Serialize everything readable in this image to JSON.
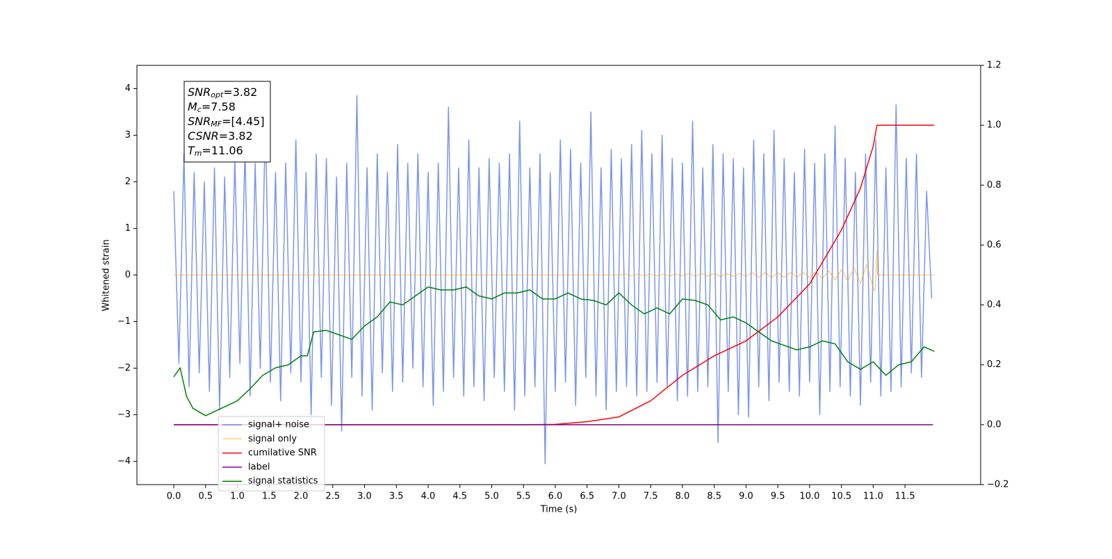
{
  "chart_data": {
    "type": "line",
    "xlabel": "Time (s)",
    "ylabel": "Whitened strain",
    "xlim": [
      -0.58,
      12.69
    ],
    "ylim": [
      -4.5,
      4.5
    ],
    "y2lim": [
      -0.2,
      1.2
    ],
    "xticks": [
      {
        "value": 0,
        "label": "0.0"
      },
      {
        "value": 0.5,
        "label": "0.5"
      },
      {
        "value": 1,
        "label": "1.0"
      },
      {
        "value": 1.5,
        "label": "1.5"
      },
      {
        "value": 2,
        "label": "2.0"
      },
      {
        "value": 2.5,
        "label": "2.5"
      },
      {
        "value": 3,
        "label": "3.0"
      },
      {
        "value": 3.5,
        "label": "3.5"
      },
      {
        "value": 4,
        "label": "4.0"
      },
      {
        "value": 4.5,
        "label": "4.5"
      },
      {
        "value": 5,
        "label": "5.0"
      },
      {
        "value": 5.5,
        "label": "5.5"
      },
      {
        "value": 6,
        "label": "6.0"
      },
      {
        "value": 6.5,
        "label": "6.5"
      },
      {
        "value": 7,
        "label": "7.0"
      },
      {
        "value": 7.5,
        "label": "7.5"
      },
      {
        "value": 8,
        "label": "8.0"
      },
      {
        "value": 8.5,
        "label": "8.5"
      },
      {
        "value": 9,
        "label": "9.0"
      },
      {
        "value": 9.5,
        "label": "9.5"
      },
      {
        "value": 10,
        "label": "10.0"
      },
      {
        "value": 10.5,
        "label": "10.5"
      },
      {
        "value": 11,
        "label": "11.0"
      },
      {
        "value": 11.5,
        "label": "11.5"
      }
    ],
    "yticks": [
      {
        "value": -4,
        "label": "−4"
      },
      {
        "value": -3,
        "label": "−3"
      },
      {
        "value": -2,
        "label": "−2"
      },
      {
        "value": -1,
        "label": "−1"
      },
      0,
      1,
      2,
      3,
      4
    ],
    "y2ticks": [
      {
        "value": -0.2,
        "label": "−0.2"
      },
      {
        "value": 0,
        "label": "0.0"
      },
      {
        "value": 0.2,
        "label": "0.2"
      },
      {
        "value": 0.4,
        "label": "0.4"
      },
      {
        "value": 0.6,
        "label": "0.6"
      },
      {
        "value": 0.8,
        "label": "0.8"
      },
      {
        "value": 1,
        "label": "1.0"
      },
      {
        "value": 1.2,
        "label": "1.2"
      }
    ],
    "annotation": [
      {
        "name": "SNR",
        "sub": "opt",
        "value": "=3.82"
      },
      {
        "name": "M",
        "sub": "c",
        "value": "=7.58"
      },
      {
        "name": "SNR",
        "sub": "MF",
        "value": "=[4.45]"
      },
      {
        "name": "CSNR",
        "value": "=3.82"
      },
      {
        "name": "T",
        "sub": "m",
        "value": "=11.06"
      }
    ],
    "series": [
      {
        "name": "signal+ noise",
        "color": "royalblue",
        "alpha": 0.7,
        "x": [
          0,
          0.08,
          0.16,
          0.24,
          0.32,
          0.4,
          0.48,
          0.56,
          0.64,
          0.72,
          0.8,
          0.88,
          0.96,
          1.04,
          1.12,
          1.2,
          1.28,
          1.36,
          1.44,
          1.52,
          1.6,
          1.68,
          1.76,
          1.84,
          1.92,
          2,
          2.08,
          2.16,
          2.24,
          2.32,
          2.4,
          2.48,
          2.56,
          2.64,
          2.72,
          2.8,
          2.88,
          2.96,
          3.04,
          3.12,
          3.2,
          3.28,
          3.36,
          3.44,
          3.52,
          3.6,
          3.68,
          3.76,
          3.84,
          3.92,
          4,
          4.08,
          4.16,
          4.24,
          4.32,
          4.4,
          4.48,
          4.56,
          4.64,
          4.72,
          4.8,
          4.88,
          4.96,
          5.04,
          5.12,
          5.2,
          5.28,
          5.36,
          5.44,
          5.52,
          5.6,
          5.68,
          5.76,
          5.84,
          5.92,
          6,
          6.08,
          6.16,
          6.24,
          6.32,
          6.4,
          6.48,
          6.56,
          6.64,
          6.72,
          6.8,
          6.88,
          6.96,
          7.04,
          7.12,
          7.2,
          7.28,
          7.36,
          7.44,
          7.52,
          7.6,
          7.68,
          7.76,
          7.84,
          7.92,
          8,
          8.08,
          8.16,
          8.24,
          8.32,
          8.4,
          8.48,
          8.56,
          8.64,
          8.72,
          8.8,
          8.88,
          8.96,
          9.04,
          9.12,
          9.2,
          9.28,
          9.36,
          9.44,
          9.52,
          9.6,
          9.68,
          9.76,
          9.84,
          9.92,
          10,
          10.08,
          10.16,
          10.24,
          10.32,
          10.4,
          10.48,
          10.56,
          10.64,
          10.72,
          10.8,
          10.88,
          10.96,
          11.04,
          11.12,
          11.2,
          11.28,
          11.36,
          11.44,
          11.52,
          11.6,
          11.68,
          11.76,
          11.84,
          11.92
        ],
        "values": [
          1.8,
          -1.9,
          2.6,
          -2.4,
          2.2,
          -2.1,
          2.0,
          -2.5,
          2.3,
          -2.9,
          2.1,
          -2.2,
          2.5,
          -1.9,
          2.7,
          -2.6,
          2.4,
          -2.0,
          3.3,
          -2.3,
          2.2,
          -2.7,
          2.4,
          -2.1,
          2.9,
          -2.3,
          2.2,
          -3.0,
          2.6,
          -2.2,
          2.5,
          -2.8,
          2.1,
          -3.35,
          2.4,
          -2.2,
          3.85,
          -2.6,
          2.3,
          -2.9,
          2.6,
          -2.1,
          2.2,
          -2.5,
          2.8,
          -2.3,
          2.4,
          -2.0,
          2.6,
          -2.4,
          2.2,
          -2.8,
          2.4,
          -2.5,
          3.6,
          -2.2,
          2.3,
          -2.6,
          2.9,
          -2.4,
          2.3,
          -2.7,
          2.5,
          -2.2,
          2.4,
          -2.5,
          2.6,
          -2.9,
          3.3,
          -2.6,
          2.3,
          -2.4,
          2.6,
          -4.05,
          2.2,
          -2.5,
          2.9,
          -2.3,
          2.7,
          -2.8,
          2.4,
          -2.2,
          3.5,
          -2.6,
          2.3,
          -2.9,
          2.7,
          -2.5,
          2.5,
          -2.4,
          2.8,
          -2.6,
          3.1,
          -2.5,
          2.6,
          -2.3,
          3.0,
          -2.4,
          2.5,
          -2.7,
          2.4,
          -2.6,
          3.3,
          -2.5,
          2.3,
          -2.4,
          2.8,
          -3.6,
          2.6,
          -2.5,
          2.5,
          -3.0,
          2.3,
          -3.05,
          2.9,
          -2.4,
          2.6,
          -2.7,
          3.1,
          -2.3,
          2.5,
          -2.5,
          2.2,
          -2.6,
          2.7,
          -2.3,
          2.4,
          -3.0,
          2.6,
          -2.5,
          3.2,
          -2.4,
          2.5,
          -2.6,
          2.2,
          -2.8,
          2.6,
          -2.3,
          2.9,
          -2.6,
          2.3,
          -2.5,
          3.65,
          -2.4,
          2.5,
          -2.1,
          2.6,
          -2.2,
          1.8,
          -0.5
        ]
      },
      {
        "name": "signal only",
        "color": "orange",
        "alpha": 0.5,
        "x": [
          0,
          7,
          7.1,
          7.2,
          7.3,
          7.4,
          7.5,
          7.6,
          7.7,
          7.8,
          7.9,
          8,
          8.1,
          8.2,
          8.3,
          8.4,
          8.5,
          8.6,
          8.7,
          8.8,
          8.9,
          9,
          9.1,
          9.2,
          9.3,
          9.4,
          9.5,
          9.6,
          9.7,
          9.8,
          9.9,
          10,
          10.1,
          10.2,
          10.3,
          10.4,
          10.5,
          10.6,
          10.7,
          10.8,
          10.9,
          11,
          11.03,
          11.06,
          11.07,
          11.96
        ],
        "values": [
          0,
          0,
          0.02,
          -0.02,
          0.02,
          -0.02,
          0.02,
          -0.02,
          0.02,
          -0.02,
          0.02,
          -0.02,
          0.03,
          -0.03,
          0.03,
          -0.03,
          0.03,
          -0.03,
          0.03,
          -0.03,
          0.03,
          -0.03,
          0.05,
          -0.05,
          0.05,
          -0.05,
          0.05,
          -0.05,
          0.05,
          -0.05,
          0.05,
          -0.05,
          0.07,
          -0.08,
          0.09,
          -0.1,
          0.11,
          -0.13,
          0.15,
          -0.18,
          0.22,
          -0.28,
          -0.35,
          0.52,
          0,
          0
        ]
      },
      {
        "name": "cumilative SNR",
        "color": "red",
        "alpha": 1,
        "axis": "y2",
        "x": [
          0,
          5.5,
          6,
          6.5,
          7,
          7.5,
          8,
          8.5,
          9,
          9.5,
          10,
          10.5,
          10.8,
          11,
          11.06,
          11.96
        ],
        "values": [
          0,
          0,
          0.001,
          0.01,
          0.026,
          0.08,
          0.165,
          0.23,
          0.28,
          0.36,
          0.47,
          0.65,
          0.79,
          0.93,
          1,
          1
        ]
      },
      {
        "name": "label",
        "color": "purple",
        "alpha": 1,
        "axis": "y2",
        "x": [
          0,
          11.94
        ],
        "values": [
          0,
          0
        ]
      },
      {
        "name": "signal statistics",
        "color": "green",
        "alpha": 1,
        "axis": "y2",
        "x": [
          0,
          0.1,
          0.2,
          0.3,
          0.5,
          0.8,
          1,
          1.2,
          1.4,
          1.6,
          1.8,
          2,
          2.1,
          2.2,
          2.4,
          2.6,
          2.8,
          3,
          3.2,
          3.4,
          3.6,
          3.8,
          4,
          4.2,
          4.4,
          4.6,
          4.8,
          5,
          5.2,
          5.4,
          5.6,
          5.8,
          6,
          6.2,
          6.4,
          6.6,
          6.8,
          7,
          7.2,
          7.4,
          7.6,
          7.8,
          8,
          8.2,
          8.4,
          8.6,
          8.8,
          9,
          9.2,
          9.4,
          9.6,
          9.8,
          10,
          10.2,
          10.4,
          10.6,
          10.8,
          11,
          11.2,
          11.4,
          11.6,
          11.8,
          11.96
        ],
        "values": [
          0.16,
          0.19,
          0.095,
          0.055,
          0.03,
          0.06,
          0.08,
          0.12,
          0.165,
          0.19,
          0.2,
          0.23,
          0.23,
          0.31,
          0.315,
          0.3,
          0.285,
          0.33,
          0.36,
          0.41,
          0.4,
          0.43,
          0.46,
          0.45,
          0.45,
          0.46,
          0.43,
          0.42,
          0.44,
          0.44,
          0.45,
          0.42,
          0.42,
          0.44,
          0.42,
          0.415,
          0.4,
          0.44,
          0.4,
          0.37,
          0.39,
          0.37,
          0.42,
          0.415,
          0.4,
          0.35,
          0.36,
          0.34,
          0.31,
          0.28,
          0.265,
          0.25,
          0.26,
          0.28,
          0.27,
          0.21,
          0.185,
          0.21,
          0.165,
          0.2,
          0.21,
          0.26,
          0.245
        ]
      }
    ]
  }
}
